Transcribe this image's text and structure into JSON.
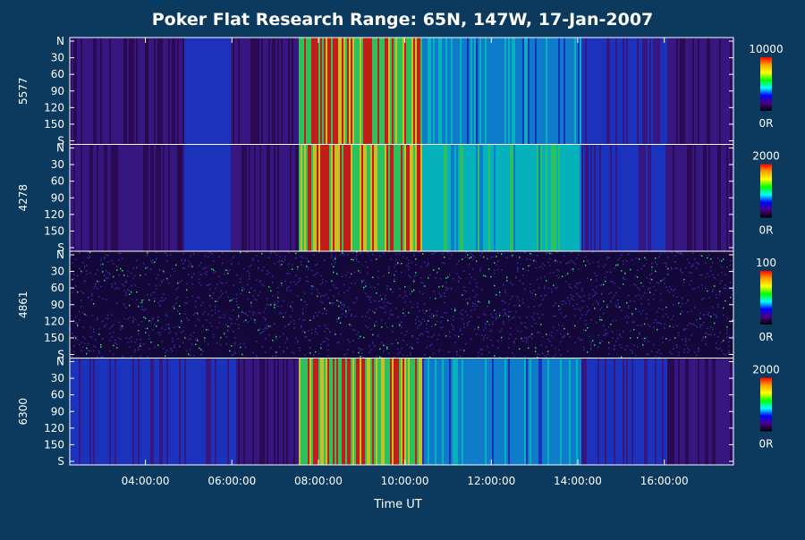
{
  "chart_data": {
    "type": "heatmap",
    "title": "Poker Flat Research Range: 65N, 147W, 17-Jan-2007",
    "xlabel": "Time UT",
    "x_ticks": [
      "04:00:00",
      "06:00:00",
      "08:00:00",
      "10:00:00",
      "12:00:00",
      "14:00:00",
      "16:00:00"
    ],
    "x_tick_hours": [
      4,
      6,
      8,
      10,
      12,
      14,
      16
    ],
    "xlim_hours": [
      2.25,
      17.6
    ],
    "y_ticks": [
      "N",
      "30",
      "60",
      "90",
      "120",
      "150",
      "S"
    ],
    "y_tick_values": [
      0,
      30,
      60,
      90,
      120,
      150,
      180
    ],
    "ylim": [
      0,
      180
    ],
    "colorbar_colors": [
      "#ff0000",
      "#ffa500",
      "#ffff00",
      "#00ff00",
      "#00ffff",
      "#0000ff",
      "#4b0082",
      "#000000"
    ],
    "panels": [
      {
        "name": "5577",
        "cbar_max": "10000",
        "cbar_min": "0R"
      },
      {
        "name": "4278",
        "cbar_max": "2000",
        "cbar_min": "0R"
      },
      {
        "name": "4861",
        "cbar_max": "100",
        "cbar_min": "0R"
      },
      {
        "name": "6300",
        "cbar_max": "2000",
        "cbar_min": "0R"
      }
    ]
  }
}
